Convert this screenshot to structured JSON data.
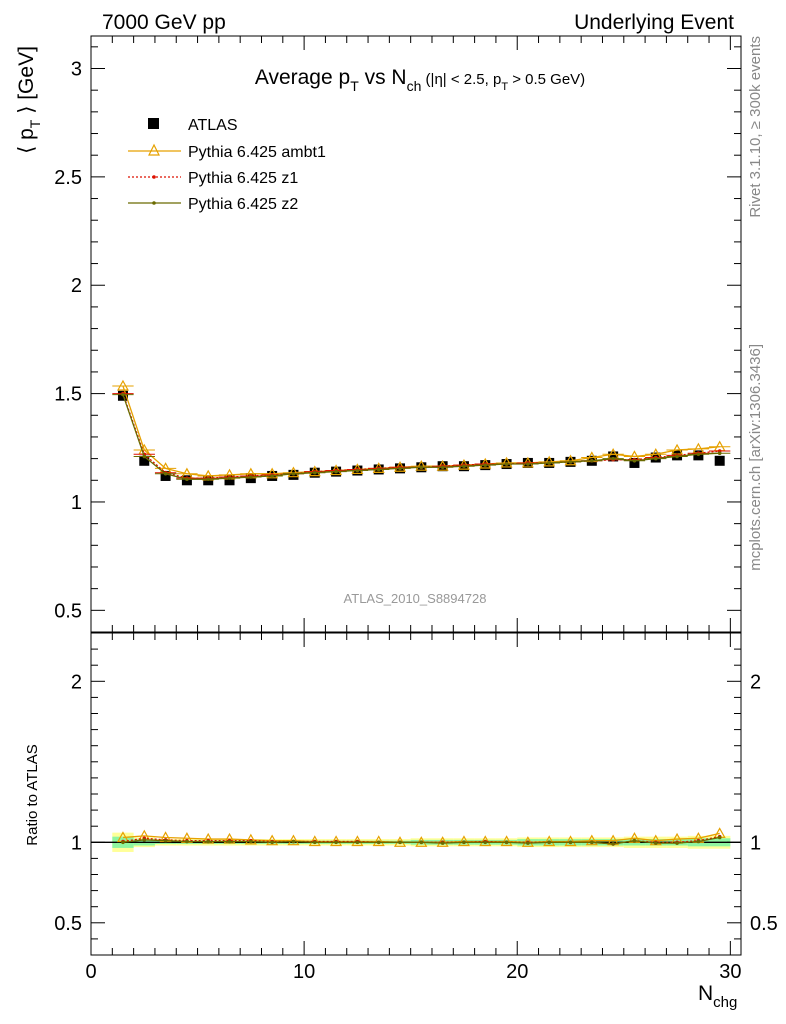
{
  "header": {
    "left": "7000 GeV pp",
    "right": "Underlying Event"
  },
  "side": {
    "rivet": "Rivet 3.1.10, ≥ 300k events",
    "mcplots": "mcplots.cern.ch [arXiv:1306.3436]"
  },
  "colors": {
    "data": "#000000",
    "ambt1": "#e6a100",
    "z1": "#dd1100",
    "z2": "#6b6b00",
    "band_inner": "#8ff5a0",
    "band_outer": "#ffff99",
    "side_text": "#888888"
  },
  "chart_data": [
    {
      "type": "scatter",
      "title": "Average p_T vs N_ch (|η| < 2.5, p_T > 0.5 GeV)",
      "analysis_label": "ATLAS_2010_S8894728",
      "ylabel": "⟨ p_T ⟩ [GeV]",
      "xlim": [
        0,
        30.5
      ],
      "ylim": [
        0.4,
        3.15
      ],
      "yticks": [
        0.5,
        1,
        1.5,
        2,
        2.5,
        3
      ],
      "ytick_labels": [
        "0.5",
        "1",
        "1.5",
        "2",
        "2.5",
        "3"
      ],
      "legend_position": "top-left",
      "x": [
        1.5,
        2.5,
        3.5,
        4.5,
        5.5,
        6.5,
        7.5,
        8.5,
        9.5,
        10.5,
        11.5,
        12.5,
        13.5,
        14.5,
        15.5,
        16.5,
        17.5,
        18.5,
        19.5,
        20.5,
        21.5,
        22.5,
        23.5,
        24.5,
        25.5,
        26.5,
        27.5,
        28.5,
        29.5
      ],
      "series": [
        {
          "name": "ATLAS",
          "key": "data",
          "marker": "square",
          "values": [
            1.49,
            1.19,
            1.12,
            1.1,
            1.1,
            1.1,
            1.11,
            1.12,
            1.125,
            1.135,
            1.14,
            1.145,
            1.15,
            1.155,
            1.16,
            1.165,
            1.165,
            1.17,
            1.175,
            1.18,
            1.18,
            1.185,
            1.19,
            1.21,
            1.18,
            1.205,
            1.215,
            1.215,
            1.19
          ]
        },
        {
          "name": "Pythia 6.425 ambt1",
          "key": "ambt1",
          "marker": "triangle",
          "values": [
            1.535,
            1.24,
            1.155,
            1.13,
            1.12,
            1.125,
            1.13,
            1.13,
            1.135,
            1.14,
            1.145,
            1.15,
            1.155,
            1.16,
            1.165,
            1.165,
            1.17,
            1.175,
            1.18,
            1.18,
            1.185,
            1.19,
            1.205,
            1.22,
            1.21,
            1.22,
            1.24,
            1.245,
            1.255
          ]
        },
        {
          "name": "Pythia 6.425 z1",
          "key": "z1",
          "marker": "dot",
          "values": [
            1.5,
            1.22,
            1.135,
            1.11,
            1.11,
            1.115,
            1.12,
            1.125,
            1.13,
            1.14,
            1.145,
            1.15,
            1.155,
            1.16,
            1.16,
            1.165,
            1.17,
            1.175,
            1.175,
            1.18,
            1.18,
            1.185,
            1.19,
            1.195,
            1.195,
            1.205,
            1.215,
            1.225,
            1.235
          ]
        },
        {
          "name": "Pythia 6.425 z2",
          "key": "z2",
          "marker": "dot",
          "values": [
            1.495,
            1.21,
            1.13,
            1.105,
            1.105,
            1.11,
            1.115,
            1.12,
            1.13,
            1.135,
            1.14,
            1.145,
            1.15,
            1.155,
            1.16,
            1.16,
            1.165,
            1.17,
            1.175,
            1.175,
            1.18,
            1.185,
            1.19,
            1.2,
            1.19,
            1.2,
            1.21,
            1.22,
            1.225
          ]
        }
      ]
    },
    {
      "type": "line",
      "ylabel": "Ratio to ATLAS",
      "xlabel": "N_chg",
      "xlim": [
        0,
        30.5
      ],
      "ylim": [
        0.3,
        2.3
      ],
      "xticks": [
        0,
        10,
        20,
        30
      ],
      "xtick_labels": [
        "0",
        "10",
        "20",
        "30"
      ],
      "yticks": [
        0.5,
        1,
        2
      ],
      "ytick_labels": [
        "0.5",
        "1",
        "2"
      ],
      "band_inner_halfwidth": [
        0.035,
        0.02,
        0.01,
        0.01,
        0.01,
        0.01,
        0.01,
        0.01,
        0.01,
        0.01,
        0.01,
        0.01,
        0.01,
        0.01,
        0.015,
        0.015,
        0.015,
        0.015,
        0.015,
        0.02,
        0.02,
        0.02,
        0.02,
        0.02,
        0.02,
        0.02,
        0.02,
        0.025,
        0.025
      ],
      "band_outer_halfwidth": [
        0.06,
        0.03,
        0.02,
        0.02,
        0.02,
        0.02,
        0.02,
        0.02,
        0.02,
        0.02,
        0.02,
        0.02,
        0.02,
        0.02,
        0.025,
        0.025,
        0.025,
        0.025,
        0.025,
        0.03,
        0.03,
        0.03,
        0.03,
        0.03,
        0.035,
        0.035,
        0.035,
        0.04,
        0.04
      ],
      "series": [
        {
          "name": "Pythia 6.425 ambt1",
          "key": "ambt1",
          "marker": "triangle",
          "values": [
            1.03,
            1.04,
            1.03,
            1.025,
            1.02,
            1.02,
            1.015,
            1.01,
            1.01,
            1.005,
            1.005,
            1.005,
            1.005,
            1.0,
            1.0,
            1.0,
            1.005,
            1.005,
            1.005,
            1.0,
            1.005,
            1.005,
            1.01,
            1.01,
            1.025,
            1.01,
            1.02,
            1.025,
            1.055
          ]
        },
        {
          "name": "Pythia 6.425 z1",
          "key": "z1",
          "marker": "dot",
          "values": [
            1.005,
            1.025,
            1.015,
            1.01,
            1.01,
            1.01,
            1.01,
            1.005,
            1.005,
            1.005,
            1.005,
            1.005,
            1.0,
            1.0,
            1.0,
            1.0,
            1.0,
            1.005,
            1.0,
            1.0,
            1.0,
            1.0,
            1.0,
            0.99,
            1.01,
            1.0,
            1.0,
            1.01,
            1.035
          ]
        },
        {
          "name": "Pythia 6.425 z2",
          "key": "z2",
          "marker": "dot",
          "values": [
            1.0,
            1.015,
            1.01,
            1.005,
            1.005,
            1.005,
            1.005,
            1.0,
            1.005,
            1.0,
            1.0,
            1.0,
            1.0,
            1.0,
            1.0,
            0.995,
            1.0,
            1.0,
            1.0,
            0.995,
            1.0,
            1.0,
            1.0,
            0.99,
            1.01,
            0.995,
            0.995,
            1.005,
            1.03
          ]
        }
      ]
    }
  ]
}
